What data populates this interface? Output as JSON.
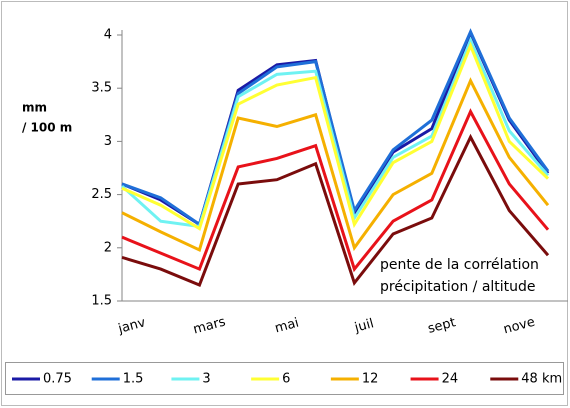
{
  "chart_data": {
    "type": "line",
    "y_label": [
      "mm",
      "/ 100 m"
    ],
    "annotation": [
      "pente de la corrélation",
      "précipitation / altitude"
    ],
    "categories": [
      "janv",
      null,
      "mars",
      null,
      "mai",
      null,
      "juil",
      null,
      "sept",
      null,
      "nove",
      null
    ],
    "ylim": [
      1.5,
      4
    ],
    "yticks": [
      1.5,
      2,
      2.5,
      3,
      3.5,
      4
    ],
    "grid": false,
    "legend": "bottom",
    "series": [
      {
        "name": "0.75",
        "color": "#1a1aa6",
        "values": [
          2.6,
          2.45,
          2.22,
          3.48,
          3.72,
          3.76,
          2.32,
          2.9,
          3.12,
          4.02,
          3.2,
          2.7
        ]
      },
      {
        "name": "1.5",
        "color": "#1f6fd8",
        "values": [
          2.6,
          2.47,
          2.22,
          3.45,
          3.7,
          3.75,
          2.35,
          2.92,
          3.2,
          4.03,
          3.22,
          2.72
        ]
      },
      {
        "name": "3",
        "color": "#6ff2f2",
        "values": [
          2.58,
          2.25,
          2.2,
          3.42,
          3.63,
          3.66,
          2.28,
          2.85,
          3.05,
          3.95,
          3.1,
          2.68
        ]
      },
      {
        "name": "6",
        "color": "#ffff33",
        "values": [
          2.56,
          2.4,
          2.18,
          3.35,
          3.53,
          3.6,
          2.22,
          2.8,
          3.0,
          3.9,
          3.0,
          2.65
        ]
      },
      {
        "name": "12",
        "color": "#f5b000",
        "values": [
          2.33,
          2.15,
          1.98,
          3.22,
          3.14,
          3.25,
          2.0,
          2.5,
          2.7,
          3.57,
          2.85,
          2.4
        ]
      },
      {
        "name": "24",
        "color": "#e8121a",
        "values": [
          2.1,
          1.95,
          1.8,
          2.76,
          2.84,
          2.96,
          1.8,
          2.25,
          2.45,
          3.28,
          2.6,
          2.17
        ]
      },
      {
        "name": "48 km",
        "color": "#7a0c0c",
        "values": [
          1.91,
          1.8,
          1.65,
          2.6,
          2.64,
          2.79,
          1.67,
          2.13,
          2.28,
          3.04,
          2.35,
          1.93
        ]
      }
    ]
  }
}
